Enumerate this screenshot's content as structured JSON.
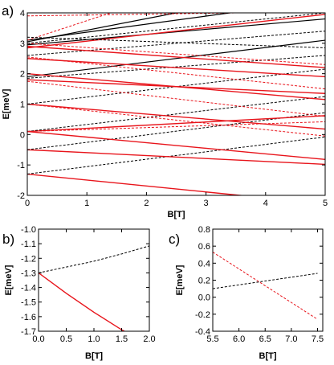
{
  "chart_data": [
    {
      "panel": "a)",
      "type": "line",
      "xlabel": "B[T]",
      "ylabel": "E[meV]",
      "xlim": [
        0,
        5
      ],
      "ylim": [
        -2,
        4
      ],
      "xticks": [
        "0",
        "1",
        "2",
        "3",
        "4",
        "5"
      ],
      "yticks": [
        "-2",
        "-1",
        "0",
        "1",
        "2",
        "3",
        "4"
      ],
      "grid": false,
      "colors": {
        "red": "#e8141b",
        "black": "#000000"
      },
      "series": [
        {
          "color": "red",
          "style": "solid",
          "x": [
            0,
            5
          ],
          "y": [
            -1.3,
            -2.28
          ]
        },
        {
          "color": "black",
          "style": "dashed",
          "x": [
            0,
            5
          ],
          "y": [
            -1.3,
            -0.08
          ]
        },
        {
          "color": "red",
          "style": "solid",
          "x": [
            0,
            5
          ],
          "y": [
            -0.5,
            -0.98
          ]
        },
        {
          "color": "black",
          "style": "dashed",
          "x": [
            0,
            5
          ],
          "y": [
            -0.5,
            0.72
          ]
        },
        {
          "color": "red",
          "style": "solid",
          "x": [
            0,
            5
          ],
          "y": [
            0.1,
            -0.82
          ]
        },
        {
          "color": "red",
          "style": "solid",
          "x": [
            0,
            5
          ],
          "y": [
            0.1,
            0.62
          ]
        },
        {
          "color": "black",
          "style": "dashed",
          "x": [
            0,
            5
          ],
          "y": [
            0.1,
            1.25
          ]
        },
        {
          "color": "red",
          "style": "dashed",
          "x": [
            0,
            5
          ],
          "y": [
            0.1,
            0.42
          ]
        },
        {
          "color": "red",
          "style": "solid",
          "x": [
            0,
            5
          ],
          "y": [
            1.0,
            0.18
          ]
        },
        {
          "color": "black",
          "style": "dashed",
          "x": [
            0,
            5
          ],
          "y": [
            1.0,
            2.15
          ]
        },
        {
          "color": "red",
          "style": "dashed",
          "x": [
            0,
            5
          ],
          "y": [
            1.0,
            -0.05
          ]
        },
        {
          "color": "red",
          "style": "solid",
          "x": [
            0,
            5
          ],
          "y": [
            1.8,
            1.35
          ]
        },
        {
          "color": "black",
          "style": "dashed",
          "x": [
            0,
            5
          ],
          "y": [
            1.85,
            2.6
          ]
        },
        {
          "color": "red",
          "style": "dashed",
          "x": [
            0,
            5
          ],
          "y": [
            1.75,
            0.6
          ]
        },
        {
          "color": "black",
          "style": "solid",
          "x": [
            0,
            5
          ],
          "y": [
            1.9,
            3.1
          ]
        },
        {
          "color": "red",
          "style": "solid",
          "x": [
            0,
            5
          ],
          "y": [
            2.0,
            1.15
          ]
        },
        {
          "color": "red",
          "style": "solid",
          "x": [
            0,
            5
          ],
          "y": [
            2.5,
            1.9
          ]
        },
        {
          "color": "red",
          "style": "dashed",
          "x": [
            0,
            5
          ],
          "y": [
            2.55,
            1.5
          ]
        },
        {
          "color": "black",
          "style": "dashed",
          "x": [
            0,
            5
          ],
          "y": [
            2.6,
            3.4
          ]
        },
        {
          "color": "red",
          "style": "solid",
          "x": [
            0,
            5
          ],
          "y": [
            2.9,
            2.2
          ]
        },
        {
          "color": "black",
          "style": "solid",
          "x": [
            0,
            3.4
          ],
          "y": [
            3.1,
            4.0
          ]
        },
        {
          "color": "black",
          "style": "solid",
          "x": [
            0,
            2.5
          ],
          "y": [
            3.05,
            4.0
          ]
        },
        {
          "color": "black",
          "style": "solid",
          "x": [
            0,
            5
          ],
          "y": [
            2.95,
            3.8
          ]
        },
        {
          "color": "red",
          "style": "solid",
          "x": [
            0,
            5
          ],
          "y": [
            2.85,
            3.95
          ]
        },
        {
          "color": "red",
          "style": "dashed",
          "x": [
            0,
            1.4
          ],
          "y": [
            3.1,
            4.0
          ]
        },
        {
          "color": "black",
          "style": "dashed",
          "x": [
            0,
            5
          ],
          "y": [
            3.0,
            4.0
          ]
        },
        {
          "color": "red",
          "style": "dashed",
          "x": [
            0,
            5
          ],
          "y": [
            3.0,
            2.3
          ]
        },
        {
          "color": "red",
          "style": "dashed",
          "x": [
            0,
            3.5
          ],
          "y": [
            3.9,
            4.0
          ]
        },
        {
          "color": "black",
          "style": "dashed",
          "x": [
            0,
            5
          ],
          "y": [
            3.2,
            2.85
          ]
        }
      ]
    },
    {
      "panel": "b)",
      "type": "line",
      "xlabel": "B[T]",
      "ylabel": "E[meV]",
      "xlim": [
        0,
        2.0
      ],
      "ylim": [
        -1.7,
        -1.0
      ],
      "xticks": [
        "0.0",
        "0.5",
        "1.0",
        "1.5",
        "2.0"
      ],
      "yticks": [
        "-1.0",
        "-1.1",
        "-1.2",
        "-1.3",
        "-1.4",
        "-1.5",
        "-1.6",
        "-1.7"
      ],
      "grid": false,
      "series": [
        {
          "color": "black",
          "style": "dashed",
          "x": [
            0,
            0.5,
            1.0,
            1.5,
            2.0
          ],
          "y": [
            -1.3,
            -1.26,
            -1.22,
            -1.17,
            -1.115
          ]
        },
        {
          "color": "red",
          "style": "solid",
          "x": [
            0,
            0.5,
            1.0,
            1.5,
            1.55
          ],
          "y": [
            -1.3,
            -1.44,
            -1.57,
            -1.69,
            -1.7
          ]
        }
      ]
    },
    {
      "panel": "c)",
      "type": "line",
      "xlabel": "B[T]",
      "ylabel": "E[meV]",
      "xlim": [
        5.5,
        7.6
      ],
      "ylim": [
        -0.4,
        0.8
      ],
      "xticks": [
        "5.5",
        "6.0",
        "6.5",
        "7.0",
        "7.5"
      ],
      "yticks": [
        "0.8",
        "0.6",
        "0.4",
        "0.2",
        "0.0",
        "-0.2",
        "-0.4"
      ],
      "grid": false,
      "series": [
        {
          "color": "black",
          "style": "dashed",
          "x": [
            5.5,
            7.5
          ],
          "y": [
            0.1,
            0.28
          ]
        },
        {
          "color": "red",
          "style": "dashed",
          "x": [
            5.5,
            7.5
          ],
          "y": [
            0.53,
            -0.26
          ]
        }
      ]
    }
  ]
}
